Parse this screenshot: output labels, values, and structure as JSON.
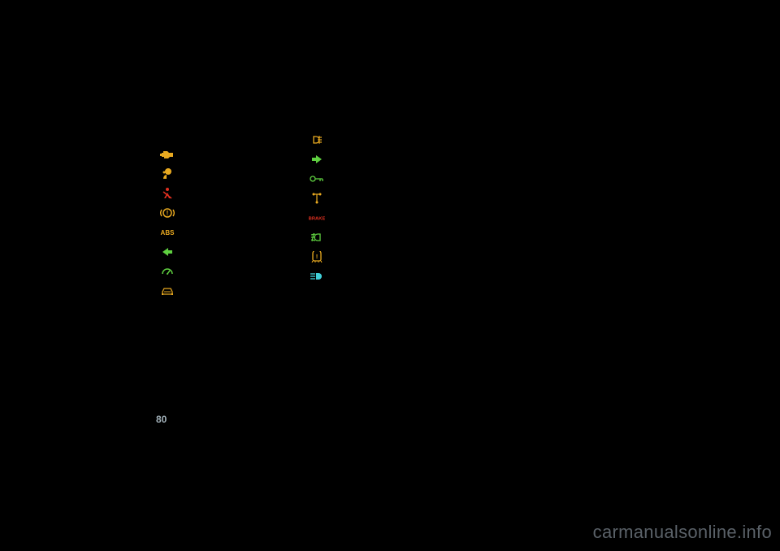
{
  "page_number": "80",
  "watermark": "carmanualsonline.info",
  "colors": {
    "bg": "#000000",
    "amber": "#e8a920",
    "green": "#5fd040",
    "red": "#e03020",
    "cyan": "#40d0d8",
    "gray": "#9faeb6",
    "wm": "#5a6168"
  },
  "left_column": [
    {
      "icon": "engine",
      "color": "#e8a920",
      "marker": ":"
    },
    {
      "icon": "airbag",
      "color": "#e8a920",
      "marker": "("
    },
    {
      "icon": "seatbelt",
      "color": "#e03020",
      "marker": ":"
    },
    {
      "icon": "brake_warn",
      "color": "#e8a920",
      "marker": "("
    },
    {
      "icon": "abs",
      "color": "#e8a920",
      "marker": ":"
    },
    {
      "icon": "arrow_left",
      "color": "#5fd040",
      "marker": "("
    },
    {
      "icon": "cruise",
      "color": "#5fd040",
      "marker": ":"
    },
    {
      "icon": "car_front",
      "color": "#e8a920",
      "marker": "("
    }
  ],
  "right_column": [
    {
      "icon": "rear_fog",
      "color": "#e8a920",
      "marker": "("
    },
    {
      "icon": "arrow_right",
      "color": "#5fd040",
      "marker": ":"
    },
    {
      "icon": "key",
      "color": "#5fd040",
      "marker": "("
    },
    {
      "icon": "transmission",
      "color": "#e8a920",
      "marker": "("
    },
    {
      "icon": "brake_text",
      "color": "#e03020",
      "marker": "("
    },
    {
      "icon": "front_fog",
      "color": "#5fd040",
      "marker": "("
    },
    {
      "icon": "tpms",
      "color": "#e8a920",
      "marker": "("
    },
    {
      "icon": "high_beam",
      "color": "#40d0d8",
      "marker": ":"
    }
  ]
}
